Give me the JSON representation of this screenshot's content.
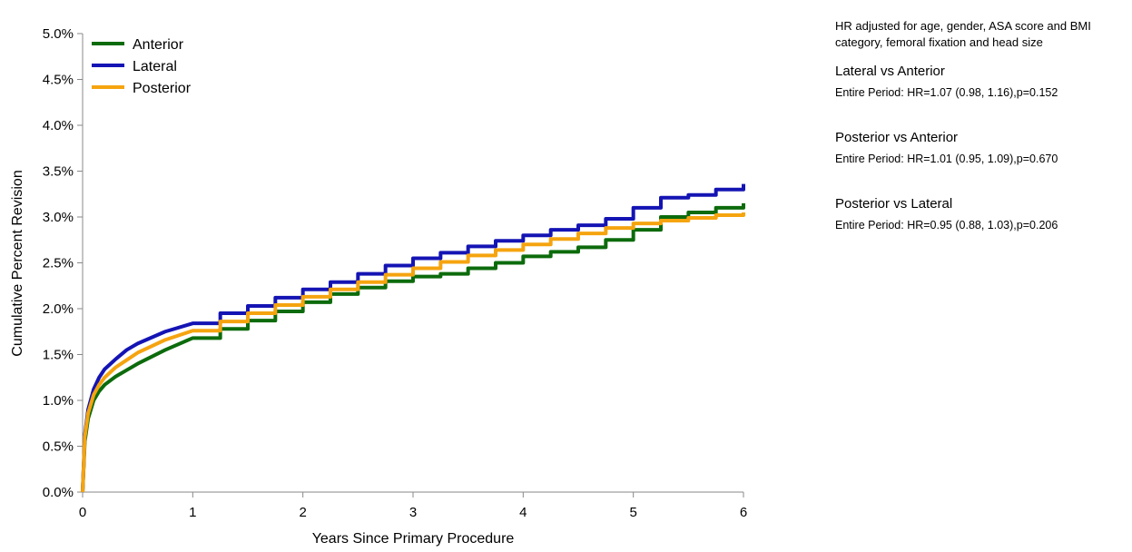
{
  "annotation": {
    "note": "HR adjusted for age, gender, ASA score and BMI category, femoral fixation and head size",
    "comparisons": [
      {
        "title": "Lateral vs Anterior",
        "stat": "Entire Period: HR=1.07 (0.98, 1.16),p=0.152"
      },
      {
        "title": "Posterior vs Anterior",
        "stat": "Entire Period: HR=1.01 (0.95, 1.09),p=0.670"
      },
      {
        "title": "Posterior vs Lateral",
        "stat": "Entire Period: HR=0.95 (0.88, 1.03),p=0.206"
      }
    ]
  },
  "chart_data": {
    "type": "line",
    "xlabel": "Years Since Primary Procedure",
    "ylabel": "Cumulative Percent Revision",
    "xlim": [
      0,
      6
    ],
    "ylim": [
      0,
      5
    ],
    "xticks": [
      0,
      1,
      2,
      3,
      4,
      5,
      6
    ],
    "yticks": [
      0,
      0.5,
      1,
      1.5,
      2,
      2.5,
      3,
      3.5,
      4,
      4.5,
      5
    ],
    "ytick_labels": [
      "0.0%",
      "0.5%",
      "1.0%",
      "1.5%",
      "2.0%",
      "2.5%",
      "3.0%",
      "3.5%",
      "4.0%",
      "4.5%",
      "5.0%"
    ],
    "xtick_labels": [
      "0",
      "1",
      "2",
      "3",
      "4",
      "5",
      "6"
    ],
    "grid": false,
    "legend_position": "top-left",
    "series": [
      {
        "name": "Anterior",
        "color": "#0c6b0c",
        "x": [
          0,
          0.02,
          0.05,
          0.1,
          0.15,
          0.2,
          0.3,
          0.4,
          0.5,
          0.75,
          1.0,
          1.25,
          1.5,
          1.75,
          2.0,
          2.25,
          2.5,
          2.75,
          3.0,
          3.25,
          3.5,
          3.75,
          4.0,
          4.25,
          4.5,
          4.75,
          5.0,
          5.25,
          5.5,
          5.75,
          6.0
        ],
        "y": [
          0,
          0.55,
          0.8,
          1.0,
          1.1,
          1.17,
          1.26,
          1.33,
          1.4,
          1.55,
          1.68,
          1.78,
          1.87,
          1.97,
          2.07,
          2.16,
          2.23,
          2.3,
          2.35,
          2.38,
          2.44,
          2.5,
          2.57,
          2.62,
          2.67,
          2.75,
          2.86,
          3.0,
          3.05,
          3.1,
          3.15
        ]
      },
      {
        "name": "Lateral",
        "color": "#1414b4",
        "x": [
          0,
          0.02,
          0.05,
          0.1,
          0.15,
          0.2,
          0.3,
          0.4,
          0.5,
          0.75,
          1.0,
          1.25,
          1.5,
          1.75,
          2.0,
          2.25,
          2.5,
          2.75,
          3.0,
          3.25,
          3.5,
          3.75,
          4.0,
          4.25,
          4.5,
          4.75,
          5.0,
          5.25,
          5.5,
          5.75,
          6.0
        ],
        "y": [
          0,
          0.62,
          0.9,
          1.12,
          1.25,
          1.34,
          1.45,
          1.55,
          1.62,
          1.75,
          1.84,
          1.95,
          2.03,
          2.12,
          2.21,
          2.29,
          2.38,
          2.47,
          2.55,
          2.61,
          2.68,
          2.74,
          2.8,
          2.86,
          2.91,
          2.98,
          3.1,
          3.21,
          3.24,
          3.3,
          3.36
        ]
      },
      {
        "name": "Posterior",
        "color": "#f5a40f",
        "x": [
          0,
          0.02,
          0.05,
          0.1,
          0.15,
          0.2,
          0.3,
          0.4,
          0.5,
          0.75,
          1.0,
          1.25,
          1.5,
          1.75,
          2.0,
          2.25,
          2.5,
          2.75,
          3.0,
          3.25,
          3.5,
          3.75,
          4.0,
          4.25,
          4.5,
          4.75,
          5.0,
          5.25,
          5.5,
          5.75,
          6.0
        ],
        "y": [
          0,
          0.6,
          0.86,
          1.06,
          1.17,
          1.25,
          1.36,
          1.44,
          1.52,
          1.66,
          1.76,
          1.86,
          1.95,
          2.04,
          2.13,
          2.21,
          2.29,
          2.37,
          2.44,
          2.51,
          2.58,
          2.64,
          2.7,
          2.76,
          2.82,
          2.88,
          2.93,
          2.96,
          2.99,
          3.02,
          3.05
        ]
      }
    ]
  }
}
